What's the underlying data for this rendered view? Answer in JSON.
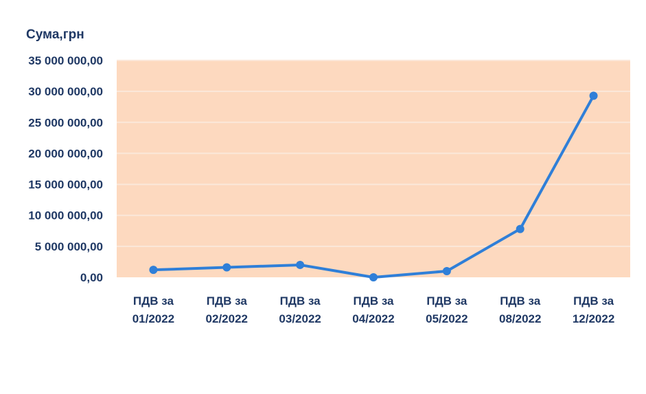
{
  "chart_data": {
    "type": "line",
    "title": "",
    "ylabel": "Сума,грн",
    "xlabel": "",
    "categories": [
      [
        "ПДВ за",
        "01/2022"
      ],
      [
        "ПДВ за",
        "02/2022"
      ],
      [
        "ПДВ за",
        "03/2022"
      ],
      [
        "ПДВ за",
        "04/2022"
      ],
      [
        "ПДВ за",
        "05/2022"
      ],
      [
        "ПДВ за",
        "08/2022"
      ],
      [
        "ПДВ за",
        "12/2022"
      ]
    ],
    "series": [
      {
        "values": [
          1200000,
          1600000,
          2000000,
          0,
          1000000,
          7800000,
          29300000
        ],
        "color": "#2f7fd8"
      }
    ],
    "ylim": [
      0,
      35000000
    ],
    "yticks": [
      0,
      5000000,
      10000000,
      15000000,
      20000000,
      25000000,
      30000000,
      35000000
    ],
    "ytick_labels": [
      "0,00",
      "5 000 000,00",
      "10 000 000,00",
      "15 000 000,00",
      "20 000 000,00",
      "25 000 000,00",
      "30 000 000,00",
      "35 000 000,00"
    ],
    "grid": true,
    "plot_background": "#fdd9bf",
    "grid_color": "#fbe8da"
  }
}
